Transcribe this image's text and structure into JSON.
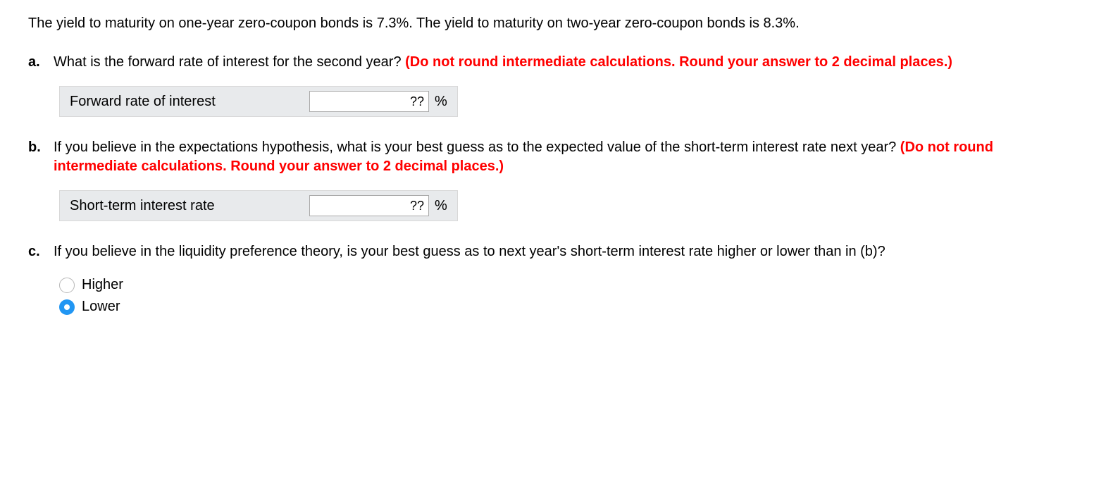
{
  "intro": "The yield to maturity on one-year zero-coupon bonds is 7.3%. The yield to maturity on two-year zero-coupon bonds is 8.3%.",
  "questions": {
    "a": {
      "marker": "a.",
      "text": "What is the forward rate of interest for the second year? ",
      "instruction": "(Do not round intermediate calculations. Round your answer to 2 decimal places.)",
      "answer_label": "Forward rate of interest",
      "answer_value": "??",
      "answer_unit": "%"
    },
    "b": {
      "marker": "b.",
      "text": "If you believe in the expectations hypothesis, what is your best guess as to the expected value of the short-term interest rate next year? ",
      "instruction": "(Do not round intermediate calculations. Round your answer to 2 decimal places.)",
      "answer_label": "Short-term interest rate",
      "answer_value": "??",
      "answer_unit": "%"
    },
    "c": {
      "marker": "c.",
      "text": "If you believe in the liquidity preference theory, is your best guess as to next year's short-term interest rate higher or lower than in (b)?",
      "options": {
        "higher": {
          "label": "Higher",
          "selected": false
        },
        "lower": {
          "label": "Lower",
          "selected": true
        }
      }
    }
  }
}
